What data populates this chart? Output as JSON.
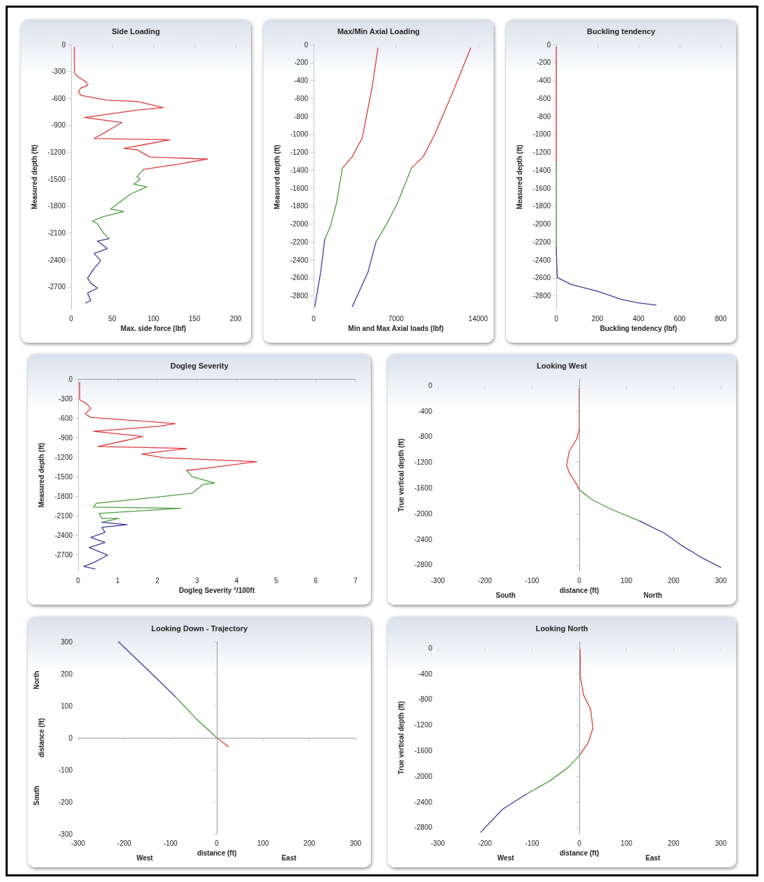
{
  "chart_data": [
    {
      "type": "line",
      "title": "Side Loading",
      "xlabel": "Max. side force (lbf)",
      "ylabel": "Measured depth (ft)",
      "xlim": [
        0,
        200
      ],
      "xticks": [
        0,
        50,
        100,
        150,
        200
      ],
      "ylim": [
        -2950,
        0
      ],
      "yticks": [
        0,
        -300,
        -600,
        -900,
        -1200,
        -1500,
        -1800,
        -2100,
        -2400,
        -2700
      ],
      "series": [
        {
          "color": "#e03a3a",
          "x": [
            4,
            4,
            8,
            18,
            20,
            12,
            9,
            12,
            44,
            80,
            112,
            80,
            16,
            62,
            28,
            120,
            88,
            64,
            80,
            96,
            166,
            128,
            88
          ],
          "values": [
            -30,
            -317,
            -358,
            -413,
            -455,
            -482,
            -523,
            -565,
            -620,
            -634,
            -702,
            -730,
            -813,
            -868,
            -1047,
            -1061,
            -1116,
            -1157,
            -1171,
            -1253,
            -1275,
            -1336,
            -1391
          ]
        },
        {
          "color": "#4a9a3a",
          "x": [
            88,
            80,
            84,
            76,
            92,
            72,
            56,
            48,
            64,
            40,
            32,
            26,
            32,
            36,
            40,
            46
          ],
          "values": [
            -1391,
            -1474,
            -1501,
            -1556,
            -1584,
            -1667,
            -1777,
            -1832,
            -1860,
            -1915,
            -1942,
            -1970,
            -1997,
            -2052,
            -2107,
            -2163
          ]
        },
        {
          "color": "#3a3aa0",
          "x": [
            46,
            32,
            44,
            28,
            36,
            28,
            20,
            24,
            32,
            20,
            24,
            18
          ],
          "values": [
            -2163,
            -2190,
            -2273,
            -2328,
            -2410,
            -2493,
            -2603,
            -2658,
            -2713,
            -2769,
            -2851,
            -2879
          ]
        }
      ]
    },
    {
      "type": "line",
      "title": "Max/Min Axial Loading",
      "xlabel": "Min and Max Axial loads (lbf)",
      "ylabel": "Measured depth (ft)",
      "xlim": [
        0,
        14000
      ],
      "xticks": [
        0,
        7000,
        14000
      ],
      "ylim": [
        -2950,
        0
      ],
      "yticks": [
        0,
        -200,
        -400,
        -600,
        -800,
        -1000,
        -1200,
        -1400,
        -1600,
        -1800,
        -2000,
        -2200,
        -2400,
        -2600,
        -2800
      ],
      "series": [
        {
          "color": "#e03a3a",
          "x": [
            5470,
            4970,
            4130,
            3290,
            2450
          ],
          "values": [
            -39,
            -476,
            -1041,
            -1247,
            -1375
          ]
        },
        {
          "color": "#4a9a3a",
          "x": [
            2450,
            1950,
            1440,
            940
          ],
          "values": [
            -1375,
            -1761,
            -2018,
            -2172
          ]
        },
        {
          "color": "#3a3aa0",
          "x": [
            940,
            600,
            100
          ],
          "values": [
            -2172,
            -2532,
            -2918
          ]
        },
        {
          "color": "#e03a3a",
          "x": [
            13360,
            12010,
            10340,
            9330,
            8320
          ],
          "values": [
            -39,
            -476,
            -990,
            -1247,
            -1375
          ]
        },
        {
          "color": "#4a9a3a",
          "x": [
            8320,
            7150,
            6140,
            5300
          ],
          "values": [
            -1375,
            -1761,
            -2018,
            -2198
          ]
        },
        {
          "color": "#3a3aa0",
          "x": [
            5300,
            4630,
            3290
          ],
          "values": [
            -2198,
            -2532,
            -2918
          ]
        }
      ]
    },
    {
      "type": "line",
      "title": "Buckling tendency",
      "xlabel": "Buckling tendency (lbf)",
      "ylabel": "Measured depth (ft)",
      "xlim": [
        0,
        800
      ],
      "xticks": [
        0,
        200,
        400,
        600,
        800
      ],
      "ylim": [
        -2950,
        0
      ],
      "yticks": [
        0,
        -200,
        -400,
        -600,
        -800,
        -1000,
        -1200,
        -1400,
        -1600,
        -1800,
        -2000,
        -2200,
        -2400,
        -2600,
        -2800
      ],
      "series": [
        {
          "color": "#e03a3a",
          "x": [
            0,
            0
          ],
          "values": [
            -26,
            -1317
          ]
        },
        {
          "color": "#4a9a3a",
          "x": [
            0,
            0
          ],
          "values": [
            -1317,
            -2263
          ]
        },
        {
          "color": "#3a3aa0",
          "x": [
            0,
            5,
            73,
            202,
            315,
            396,
            485
          ],
          "values": [
            -2263,
            -2596,
            -2673,
            -2749,
            -2839,
            -2877,
            -2903
          ]
        }
      ]
    },
    {
      "type": "line",
      "title": "Dogleg Severity",
      "xlabel": "Dogleg Severity °/100ft",
      "ylabel": "Measured depth (ft)",
      "xlim": [
        0,
        7
      ],
      "xticks": [
        0,
        1,
        2,
        3,
        4,
        5,
        6,
        7
      ],
      "ylim": [
        -2950,
        0
      ],
      "yticks": [
        0,
        -300,
        -600,
        -900,
        -1200,
        -1500,
        -1800,
        -2100,
        -2400,
        -2700
      ],
      "ref_lines": [
        {
          "axis": "y",
          "value": 0
        }
      ],
      "series": [
        {
          "color": "#e03a3a",
          "x": [
            0.04,
            0.04,
            0.21,
            0.32,
            0.18,
            0.32,
            1.67,
            2.45,
            2.03,
            0.39,
            1.63,
            1.24,
            0.5,
            2.74,
            1.6,
            2.17,
            4.51,
            3.3,
            2.74
          ],
          "values": [
            -47,
            -318,
            -376,
            -453,
            -531,
            -589,
            -647,
            -686,
            -725,
            -802,
            -880,
            -938,
            -1035,
            -1066,
            -1151,
            -1209,
            -1267,
            -1364,
            -1403
          ]
        },
        {
          "color": "#4a9a3a",
          "x": [
            2.74,
            2.88,
            3.45,
            3.16,
            2.88,
            2.03,
            0.46,
            0.39,
            2.59,
            0.53,
            0.6,
            1.03,
            0.6
          ],
          "values": [
            -1403,
            -1500,
            -1597,
            -1616,
            -1752,
            -1810,
            -1907,
            -1965,
            -1984,
            -2062,
            -2140,
            -2140,
            -2198
          ]
        },
        {
          "color": "#3a3aa0",
          "x": [
            0.6,
            1.24,
            0.6,
            0.68,
            0.32,
            0.68,
            0.28,
            0.75,
            0.39,
            0.14,
            0.43
          ],
          "values": [
            -2198,
            -2236,
            -2275,
            -2353,
            -2430,
            -2508,
            -2585,
            -2702,
            -2818,
            -2876,
            -2915
          ]
        }
      ]
    },
    {
      "type": "line",
      "title": "Looking West",
      "xlabel": "distance (ft)",
      "ylabel": "True vertical depth (ft)",
      "annotations": [
        "South",
        "North"
      ],
      "xlim": [
        -300,
        300
      ],
      "xticks": [
        -300,
        -200,
        -100,
        0,
        100,
        200,
        300
      ],
      "ylim": [
        -2900,
        100
      ],
      "yticks": [
        0,
        -400,
        -800,
        -1200,
        -1600,
        -2000,
        -2400,
        -2800
      ],
      "ref_lines": [
        {
          "axis": "x",
          "value": 0
        }
      ],
      "series": [
        {
          "color": "#e03a3a",
          "x": [
            0,
            0,
            -5,
            -21,
            -27,
            -21,
            -5,
            0
          ],
          "values": [
            -38,
            -681,
            -832,
            -1022,
            -1249,
            -1362,
            -1551,
            -1627
          ]
        },
        {
          "color": "#4a9a3a",
          "x": [
            0,
            26,
            67,
            129
          ],
          "values": [
            -1627,
            -1778,
            -1930,
            -2119
          ]
        },
        {
          "color": "#3a3aa0",
          "x": [
            129,
            181,
            217,
            259,
            300
          ],
          "values": [
            -2119,
            -2308,
            -2497,
            -2686,
            -2838
          ]
        }
      ]
    },
    {
      "type": "line",
      "title": "Looking Down - Trajectory",
      "xlabel": "distance (ft)",
      "ylabel": "distance (ft)",
      "annotations": [
        "West",
        "East",
        "North",
        "South"
      ],
      "xlim": [
        -300,
        300
      ],
      "xticks": [
        -300,
        -200,
        -100,
        0,
        100,
        200,
        300
      ],
      "ylim": [
        -300,
        300
      ],
      "yticks": [
        -300,
        -200,
        -100,
        0,
        100,
        200,
        300
      ],
      "ref_lines": [
        {
          "axis": "x",
          "value": 0
        },
        {
          "axis": "y",
          "value": 0
        }
      ],
      "series": [
        {
          "color": "#e03a3a",
          "x": [
            25,
            12,
            0
          ],
          "values": [
            -28,
            -13,
            0
          ]
        },
        {
          "color": "#4a9a3a",
          "x": [
            0,
            -45,
            -90
          ],
          "values": [
            0,
            60,
            129
          ]
        },
        {
          "color": "#3a3aa0",
          "x": [
            -90,
            -150,
            -213
          ],
          "values": [
            129,
            213,
            300
          ]
        }
      ]
    },
    {
      "type": "line",
      "title": "Looking North",
      "xlabel": "distance (ft)",
      "ylabel": "True vertical depth (ft)",
      "annotations": [
        "West",
        "East"
      ],
      "xlim": [
        -300,
        300
      ],
      "xticks": [
        -300,
        -200,
        -100,
        0,
        100,
        200,
        300
      ],
      "ylim": [
        -2900,
        100
      ],
      "yticks": [
        0,
        -400,
        -800,
        -1200,
        -1600,
        -2000,
        -2400,
        -2800
      ],
      "ref_lines": [
        {
          "axis": "x",
          "value": 0
        }
      ],
      "series": [
        {
          "color": "#e03a3a",
          "x": [
            2,
            2,
            9,
            24,
            29,
            19,
            2
          ],
          "values": [
            -22,
            -432,
            -730,
            -953,
            -1251,
            -1474,
            -1660
          ]
        },
        {
          "color": "#4a9a3a",
          "x": [
            2,
            -21,
            -62,
            -112
          ],
          "values": [
            -1660,
            -1847,
            -2070,
            -2278
          ]
        },
        {
          "color": "#3a3aa0",
          "x": [
            -112,
            -163,
            -209
          ],
          "values": [
            -2278,
            -2517,
            -2874
          ]
        }
      ]
    }
  ]
}
